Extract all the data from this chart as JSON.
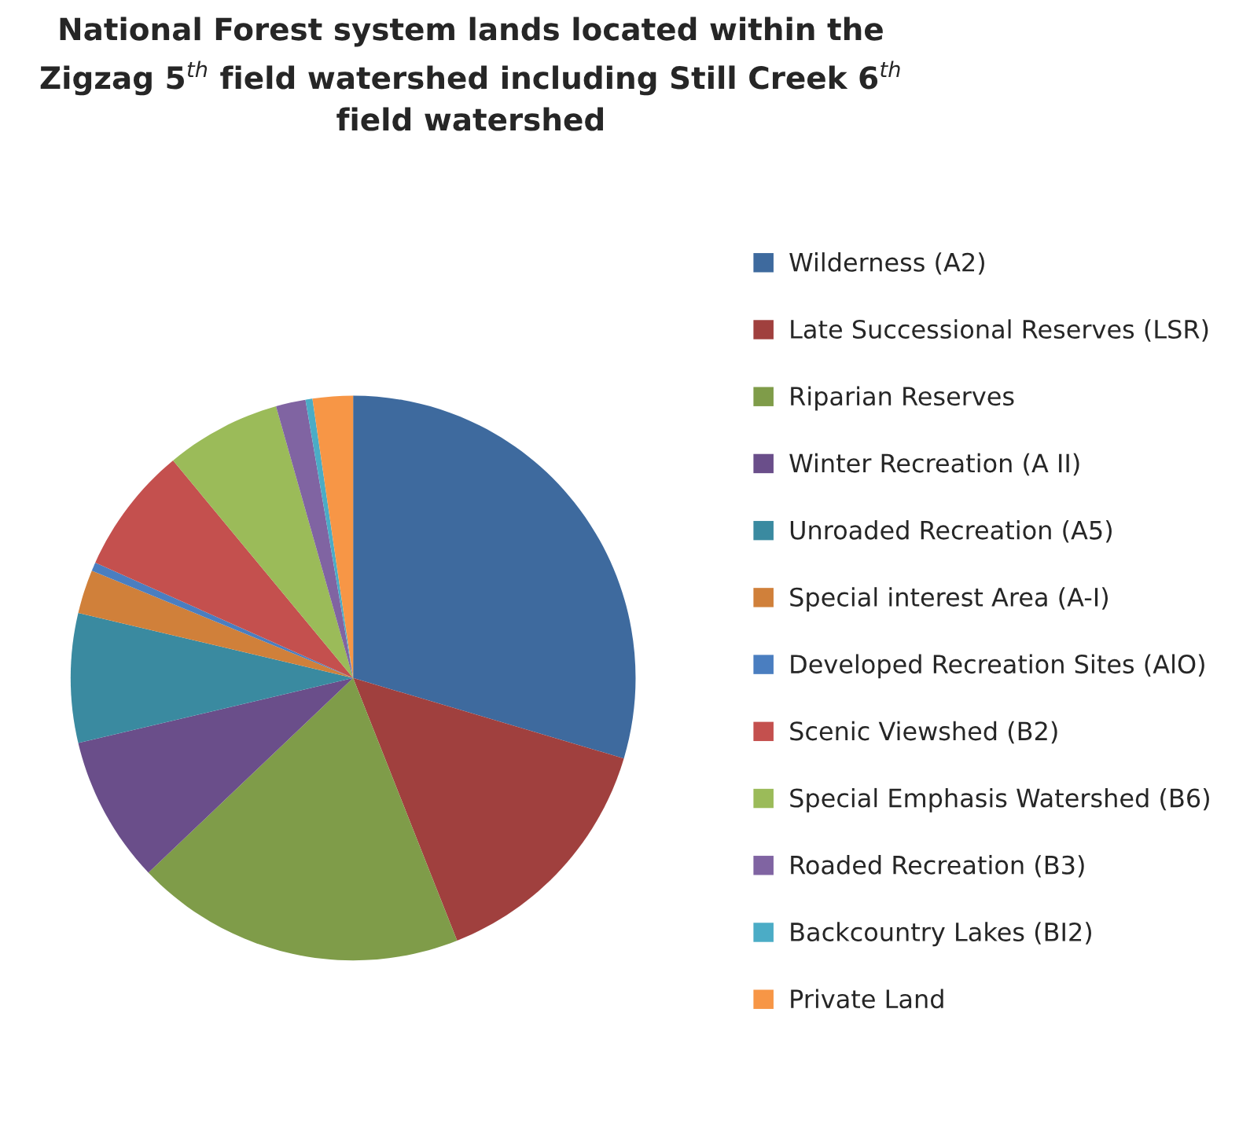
{
  "chart_data": {
    "type": "pie",
    "title": "National Forest system lands located within the\nZigzag 5$^{th}$ field watershed including Still Creek 6$^{th}$\nfield watershed",
    "categories": [
      "Wilderness (A2)",
      "Late Successional Reserves (LSR)",
      "Riparian Reserves",
      "Winter Recreation (A II)",
      "Unroaded Recreation (A5)",
      "Special interest Area (A-I)",
      "Developed Recreation Sites (AlO)",
      "Scenic Viewshed (B2)",
      "Special Emphasis Watershed (B6)",
      "Roaded Recreation (B3)",
      "Backcountry Lakes (BI2)",
      "Private Land"
    ],
    "values": [
      29.6,
      14.4,
      18.9,
      8.4,
      7.4,
      2.5,
      0.5,
      7.3,
      6.6,
      1.7,
      0.4,
      2.3
    ],
    "colors": [
      "#3e6a9e",
      "#a0403e",
      "#7f9c49",
      "#6a4e8a",
      "#3a8aa0",
      "#d0803a",
      "#4a7ec0",
      "#c4504e",
      "#9bbb59",
      "#8064a2",
      "#4bacc6",
      "#f79646"
    ],
    "legend": "right"
  }
}
